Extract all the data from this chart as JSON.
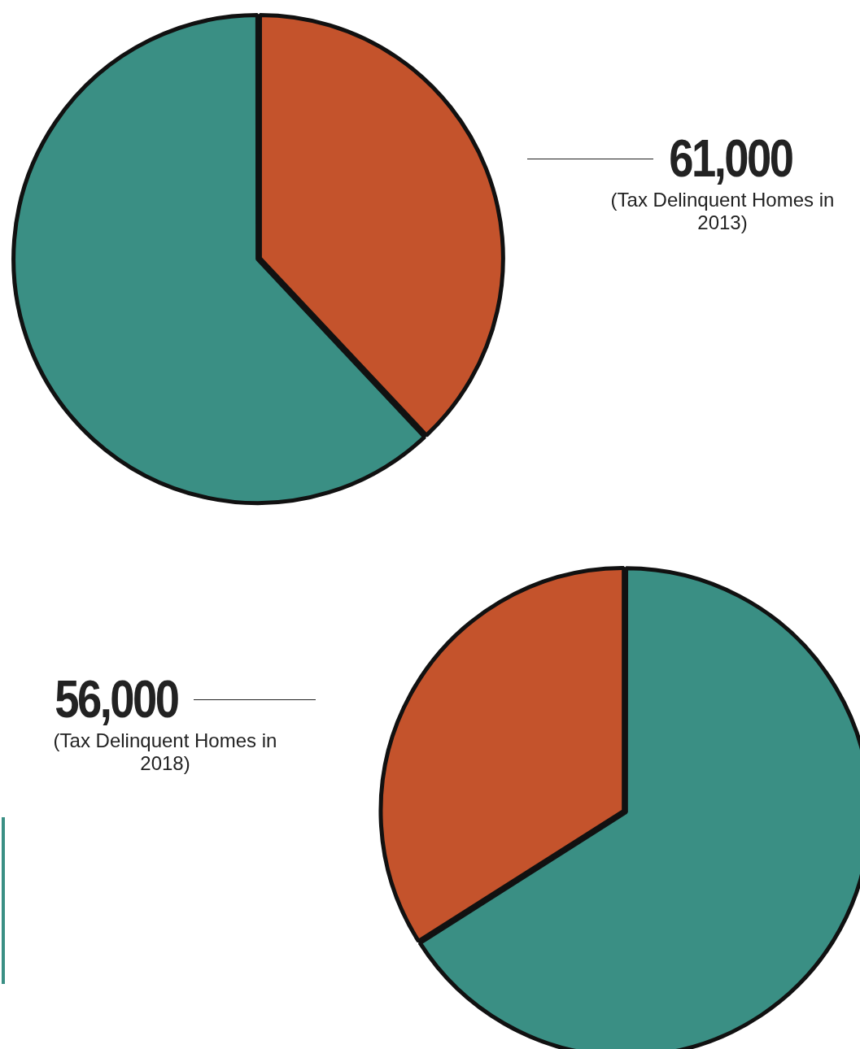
{
  "chart_data": [
    {
      "type": "pie",
      "categories": [
        null,
        null
      ],
      "values": [
        38,
        62
      ],
      "colors": [
        "#c4532c",
        "#3a8f84"
      ],
      "annotations": [
        "61,000",
        "(Tax Delinquent Homes in 2013)"
      ]
    },
    {
      "type": "pie",
      "categories": [
        null,
        null
      ],
      "values": [
        66,
        34
      ],
      "colors": [
        "#3a8f84",
        "#c4532c"
      ],
      "annotations": [
        "56,000",
        "(Tax Delinquent Homes in 2018)"
      ]
    }
  ]
}
